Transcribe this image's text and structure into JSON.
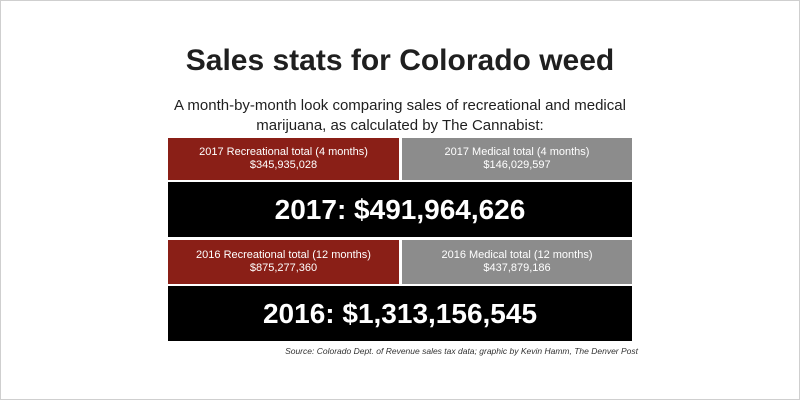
{
  "title": "Sales stats for Colorado weed",
  "subtitle": "A month-by-month look comparing sales of recreational and medical marijuana, as calculated by The Cannabist:",
  "colors": {
    "recreational": "#8a1f17",
    "medical": "#8c8c8c",
    "total_bg": "#000000"
  },
  "y2017": {
    "recreational_label": "2017 Recreational total (4 months)",
    "recreational_value": "$345,935,028",
    "medical_label": "2017 Medical total (4 months)",
    "medical_value": "$146,029,597",
    "total": "2017: $491,964,626"
  },
  "y2016": {
    "recreational_label": "2016 Recreational total (12 months)",
    "recreational_value": "$875,277,360",
    "medical_label": "2016 Medical total (12 months)",
    "medical_value": "$437,879,186",
    "total": "2016: $1,313,156,545"
  },
  "source": "Source: Colorado Dept. of Revenue sales tax data; graphic by Kevin Hamm, The Denver Post"
}
